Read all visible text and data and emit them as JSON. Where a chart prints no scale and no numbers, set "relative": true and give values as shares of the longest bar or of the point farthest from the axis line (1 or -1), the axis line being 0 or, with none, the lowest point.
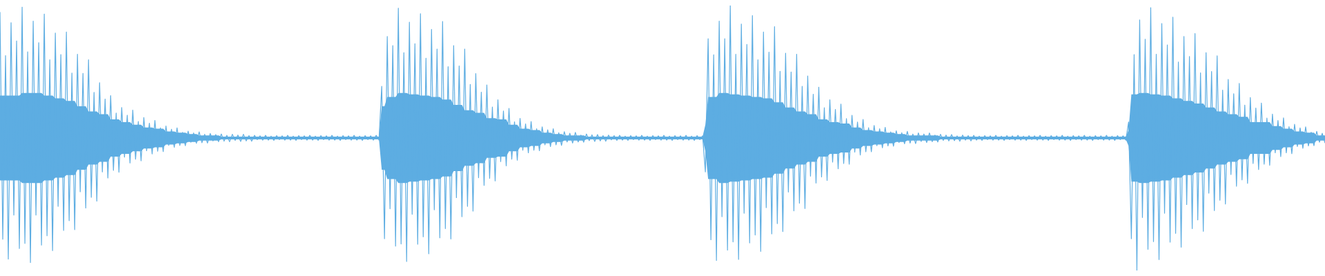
{
  "chart_data": {
    "type": "line",
    "relative": true,
    "categories": [
      null,
      null,
      null,
      null,
      null,
      null,
      null,
      null,
      null,
      null,
      null,
      null,
      null,
      null,
      null,
      null,
      null,
      null,
      null,
      null,
      null,
      null,
      null,
      null,
      null,
      null,
      null,
      null,
      null,
      null,
      null,
      null,
      null,
      null,
      null,
      null,
      null,
      null,
      null,
      null,
      null,
      null,
      null,
      null,
      null,
      null,
      null,
      null,
      null,
      null,
      null,
      null,
      null,
      null,
      null,
      null,
      null,
      null,
      null,
      null,
      null,
      null,
      null,
      null,
      null,
      null,
      null,
      null,
      null,
      null,
      null,
      null,
      null,
      null,
      null,
      null,
      null,
      null,
      null,
      null,
      null,
      null,
      null,
      null,
      null,
      null,
      null,
      null,
      null,
      null,
      null,
      null,
      null,
      null,
      null,
      null,
      null,
      null,
      null,
      null,
      null,
      null,
      null,
      null,
      null,
      null,
      null,
      null,
      null,
      null,
      null,
      null,
      null,
      null,
      null,
      null,
      null,
      null,
      null,
      null,
      null,
      null,
      null,
      null,
      null,
      null,
      null,
      null,
      null,
      null,
      null,
      null,
      null,
      null,
      null,
      null,
      null,
      null,
      null,
      null,
      null,
      null,
      null,
      null,
      null,
      null,
      null,
      null,
      null,
      null,
      null,
      null,
      null,
      null,
      null,
      null,
      null,
      null,
      null,
      null,
      null,
      null,
      null,
      null,
      null,
      null,
      null,
      null,
      null,
      null,
      null,
      null,
      null,
      null,
      null,
      null,
      null,
      null,
      null,
      null,
      null,
      null,
      null,
      null,
      null,
      null,
      null,
      null,
      null,
      null,
      null,
      null,
      null,
      null,
      null,
      null,
      null,
      null,
      null,
      null,
      null,
      null,
      null,
      null,
      null,
      null,
      null,
      null,
      null,
      null,
      null,
      null,
      null,
      null,
      null,
      null,
      null,
      null,
      null,
      null,
      null,
      null,
      null,
      null,
      null,
      null,
      null,
      null,
      null,
      null,
      null,
      null,
      null,
      null,
      null,
      null,
      null,
      null,
      null,
      null,
      null,
      null,
      null,
      null,
      null,
      null,
      null,
      null,
      null,
      null,
      null,
      null,
      null,
      null,
      null,
      null,
      null,
      null,
      null,
      null,
      null,
      null,
      null,
      null,
      null,
      null,
      null,
      null,
      null,
      null,
      null,
      null,
      null,
      null,
      null,
      null,
      null,
      null,
      null,
      null,
      null,
      null,
      null,
      null,
      null,
      null,
      null,
      null,
      null,
      null,
      null,
      null,
      null,
      null,
      null,
      null,
      null,
      null,
      null,
      null,
      null,
      null,
      null,
      null,
      null,
      null,
      null,
      null,
      null,
      null,
      null,
      null,
      null,
      null,
      null,
      null,
      null,
      null,
      null,
      null,
      null,
      null,
      null,
      null,
      null,
      null,
      null,
      null,
      null,
      null,
      null,
      null,
      null,
      null,
      null,
      null,
      null,
      null,
      null,
      null,
      null,
      null,
      null,
      null,
      null,
      null,
      null,
      null,
      null,
      null,
      null,
      null,
      null,
      null,
      null,
      null,
      null,
      null,
      null,
      null,
      null,
      null,
      null,
      null,
      null,
      null,
      null,
      null,
      null,
      null,
      null,
      null,
      null,
      null,
      null,
      null,
      null,
      null,
      null,
      null,
      null,
      null,
      null,
      null,
      null,
      null,
      null,
      null,
      null,
      null,
      null,
      null,
      null,
      null,
      null,
      null,
      null,
      null,
      null,
      null,
      null,
      null,
      null,
      null,
      null,
      null,
      null,
      null,
      null,
      null,
      null,
      null,
      null,
      null,
      null,
      null,
      null,
      null,
      null,
      null,
      null,
      null,
      null,
      null,
      null,
      null,
      null,
      null,
      null,
      null,
      null,
      null,
      null,
      null,
      null,
      null,
      null,
      null,
      null,
      null,
      null,
      null,
      null,
      null,
      null,
      null,
      null,
      null,
      null,
      null,
      null,
      null,
      null,
      null,
      null,
      null,
      null,
      null,
      null,
      null,
      null,
      null,
      null,
      null,
      null,
      null,
      null,
      null,
      null,
      null,
      null,
      null,
      null,
      null,
      null,
      null,
      null,
      null,
      null,
      null
    ],
    "series": [
      {
        "color": "#5dade2",
        "values": [
          0.975,
          0.118,
          0.811,
          0.043,
          0.935,
          0.209,
          0.866,
          0.083,
          0.994,
          0.102,
          0.825,
          0.03,
          0.941,
          0.209,
          0.86,
          0.096,
          0.968,
          0.131,
          0.795,
          0.075,
          0.896,
          0.242,
          0.815,
          0.151,
          0.9,
          0.188,
          0.745,
          0.154,
          0.816,
          0.297,
          0.744,
          0.236,
          0.795,
          0.276,
          0.672,
          0.262,
          0.709,
          0.372,
          0.647,
          0.349,
          0.66,
          0.378,
          0.594,
          0.371,
          0.615,
          0.428,
          0.586,
          0.406,
          0.605,
          0.42,
          0.562,
          0.414,
          0.577,
          0.452,
          0.556,
          0.44,
          0.566,
          0.45,
          0.538,
          0.449,
          0.545,
          0.472,
          0.533,
          0.465,
          0.538,
          0.472,
          0.521,
          0.471,
          0.526,
          0.484,
          0.519,
          0.48,
          0.523,
          0.482,
          0.514,
          0.481,
          0.517,
          0.489,
          0.513,
          0.486,
          0.515,
          0.488,
          0.51,
          0.486,
          0.514,
          0.491,
          0.511,
          0.487,
          0.514,
          0.489,
          0.509,
          0.488,
          0.51,
          0.494,
          0.508,
          0.492,
          0.51,
          0.492,
          0.507,
          0.491,
          0.509,
          0.494,
          0.508,
          0.492,
          0.51,
          0.492,
          0.507,
          0.491,
          0.509,
          0.494,
          0.508,
          0.492,
          0.51,
          0.492,
          0.507,
          0.491,
          0.509,
          0.494,
          0.508,
          0.492,
          0.51,
          0.492,
          0.507,
          0.491,
          0.509,
          0.494,
          0.508,
          0.492,
          0.51,
          0.492,
          0.507,
          0.491,
          0.509,
          0.494,
          0.508,
          0.492,
          0.51,
          0.492,
          0.695,
          0.12,
          0.883,
          0.233,
          0.849,
          0.092,
          0.99,
          0.1,
          0.822,
          0.034,
          0.937,
          0.212,
          0.856,
          0.099,
          0.969,
          0.127,
          0.801,
          0.063,
          0.91,
          0.229,
          0.836,
          0.123,
          0.94,
          0.158,
          0.769,
          0.119,
          0.849,
          0.275,
          0.772,
          0.203,
          0.836,
          0.242,
          0.702,
          0.224,
          0.743,
          0.35,
          0.673,
          0.321,
          0.7,
          0.348,
          0.617,
          0.338,
          0.644,
          0.411,
          0.602,
          0.395,
          0.612,
          0.42,
          0.561,
          0.416,
          0.574,
          0.454,
          0.553,
          0.444,
          0.562,
          0.454,
          0.535,
          0.452,
          0.542,
          0.474,
          0.531,
          0.468,
          0.535,
          0.474,
          0.52,
          0.472,
          0.524,
          0.485,
          0.518,
          0.481,
          0.521,
          0.485,
          0.511,
          0.484,
          0.515,
          0.49,
          0.512,
          0.487,
          0.513,
          0.489,
          0.509,
          0.488,
          0.511,
          0.493,
          0.509,
          0.491,
          0.51,
          0.492,
          0.507,
          0.491,
          0.509,
          0.494,
          0.508,
          0.492,
          0.51,
          0.492,
          0.507,
          0.491,
          0.509,
          0.494,
          0.508,
          0.492,
          0.51,
          0.492,
          0.507,
          0.491,
          0.509,
          0.494,
          0.508,
          0.492,
          0.51,
          0.492,
          0.507,
          0.491,
          0.509,
          0.494,
          0.508,
          0.372,
          0.875,
          0.116,
          0.814,
          0.038,
          0.941,
          0.203,
          0.875,
          0.077,
          1.0,
          0.108,
          0.816,
          0.042,
          0.93,
          0.216,
          0.853,
          0.104,
          0.962,
          0.134,
          0.795,
          0.072,
          0.9,
          0.237,
          0.824,
          0.138,
          0.92,
          0.177,
          0.752,
          0.147,
          0.82,
          0.296,
          0.749,
          0.225,
          0.816,
          0.254,
          0.695,
          0.234,
          0.734,
          0.356,
          0.665,
          0.33,
          0.692,
          0.353,
          0.614,
          0.34,
          0.644,
          0.409,
          0.608,
          0.384,
          0.628,
          0.404,
          0.573,
          0.401,
          0.586,
          0.447,
          0.56,
          0.436,
          0.57,
          0.448,
          0.539,
          0.448,
          0.547,
          0.471,
          0.535,
          0.463,
          0.54,
          0.47,
          0.523,
          0.469,
          0.527,
          0.483,
          0.52,
          0.478,
          0.525,
          0.481,
          0.515,
          0.479,
          0.519,
          0.487,
          0.515,
          0.483,
          0.519,
          0.486,
          0.511,
          0.485,
          0.514,
          0.491,
          0.511,
          0.489,
          0.513,
          0.49,
          0.508,
          0.488,
          0.511,
          0.492,
          0.509,
          0.489,
          0.51,
          0.492,
          0.507,
          0.491,
          0.509,
          0.494,
          0.508,
          0.492,
          0.51,
          0.492,
          0.507,
          0.491,
          0.509,
          0.494,
          0.508,
          0.492,
          0.51,
          0.492,
          0.507,
          0.491,
          0.509,
          0.494,
          0.508,
          0.492,
          0.51,
          0.492,
          0.507,
          0.491,
          0.509,
          0.494,
          0.508,
          0.492,
          0.51,
          0.492,
          0.507,
          0.491,
          0.509,
          0.494,
          0.508,
          0.492,
          0.51,
          0.492,
          0.507,
          0.491,
          0.509,
          0.494,
          0.508,
          0.492,
          0.51,
          0.492,
          0.507,
          0.491,
          0.509,
          0.494,
          0.508,
          0.492,
          0.56,
          0.12,
          0.815,
          0.0,
          0.946,
          0.2,
          0.873,
          0.08,
          0.992,
          0.109,
          0.816,
          0.041,
          0.932,
          0.216,
          0.851,
          0.107,
          0.956,
          0.14,
          0.787,
          0.088,
          0.883,
          0.249,
          0.808,
          0.158,
          0.894,
          0.191,
          0.746,
          0.148,
          0.822,
          0.292,
          0.751,
          0.226,
          0.81,
          0.265,
          0.681,
          0.251,
          0.721,
          0.362,
          0.667,
          0.318,
          0.706,
          0.342,
          0.624,
          0.329,
          0.653,
          0.404,
          0.613,
          0.381,
          0.632,
          0.401,
          0.575,
          0.397,
          0.59,
          0.444,
          0.566,
          0.43,
          0.576,
          0.444,
          0.543,
          0.441,
          0.552,
          0.468,
          0.538,
          0.461,
          0.542,
          0.47,
          0.522,
          0.471,
          0.525,
          0.484,
          0.518,
          0.481
        ],
        "upper": [
          0.66,
          0.66,
          0.66,
          0.66,
          0.66,
          0.66,
          0.66,
          0.66,
          0.67,
          0.67,
          0.67,
          0.67,
          0.67,
          0.67,
          0.67,
          0.67,
          0.66,
          0.66,
          0.66,
          0.66,
          0.65,
          0.65,
          0.65,
          0.65,
          0.64,
          0.64,
          0.64,
          0.64,
          0.62,
          0.62,
          0.62,
          0.62,
          0.6,
          0.6,
          0.6,
          0.6,
          0.59,
          0.59,
          0.59,
          0.59,
          0.57,
          0.57,
          0.57,
          0.57,
          0.56,
          0.56,
          0.56,
          0.56,
          0.55,
          0.55,
          0.55,
          0.55,
          0.54,
          0.54,
          0.54,
          0.54,
          0.535,
          0.535,
          0.535,
          0.535,
          0.525,
          0.525,
          0.525,
          0.525,
          0.52,
          0.52,
          0.52,
          0.52,
          0.515,
          0.515,
          0.515,
          0.515,
          0.51,
          0.51,
          0.51,
          0.51,
          0.51,
          0.51,
          0.51,
          0.51,
          0.505,
          0.505,
          0.505,
          0.505,
          0.505,
          0.505,
          0.505,
          0.505,
          0.505,
          0.505,
          0.505,
          0.505,
          0.505,
          0.505,
          0.505,
          0.505,
          0.505,
          0.505,
          0.505,
          0.505,
          0.505,
          0.505,
          0.505,
          0.505,
          0.505,
          0.505,
          0.505,
          0.505,
          0.505,
          0.505,
          0.505,
          0.505,
          0.505,
          0.505,
          0.505,
          0.505,
          0.505,
          0.505,
          0.505,
          0.505,
          0.505,
          0.505,
          0.505,
          0.505,
          0.505,
          0.505,
          0.505,
          0.505,
          0.505,
          0.505,
          0.505,
          0.505,
          0.505,
          0.505,
          0.505,
          0.505,
          0.505,
          0.505,
          0.62,
          0.62,
          0.655,
          0.655,
          0.655,
          0.655,
          0.67,
          0.67,
          0.67,
          0.67,
          0.665,
          0.665,
          0.665,
          0.665,
          0.66,
          0.66,
          0.66,
          0.66,
          0.655,
          0.655,
          0.655,
          0.655,
          0.645,
          0.645,
          0.645,
          0.645,
          0.625,
          0.625,
          0.625,
          0.625,
          0.605,
          0.605,
          0.605,
          0.605,
          0.595,
          0.595,
          0.595,
          0.595,
          0.575,
          0.575,
          0.575,
          0.575,
          0.57,
          0.57,
          0.57,
          0.57,
          0.55,
          0.55,
          0.55,
          0.55,
          0.535,
          0.535,
          0.535,
          0.535,
          0.53,
          0.53,
          0.53,
          0.53,
          0.52,
          0.52,
          0.52,
          0.52,
          0.515,
          0.515,
          0.515,
          0.515,
          0.51,
          0.51,
          0.51,
          0.51,
          0.51,
          0.51,
          0.51,
          0.51,
          0.505,
          0.505,
          0.505,
          0.505,
          0.505,
          0.505,
          0.505,
          0.505,
          0.505,
          0.505,
          0.505,
          0.505,
          0.505,
          0.505,
          0.505,
          0.505,
          0.505,
          0.505,
          0.505,
          0.505,
          0.505,
          0.505,
          0.505,
          0.505,
          0.505,
          0.505,
          0.505,
          0.505,
          0.505,
          0.505,
          0.505,
          0.505,
          0.505,
          0.505,
          0.505,
          0.505,
          0.505,
          0.505,
          0.505,
          0.505,
          0.505,
          0.505,
          0.505,
          0.55,
          0.655,
          0.655,
          0.655,
          0.655,
          0.67,
          0.67,
          0.67,
          0.67,
          0.665,
          0.665,
          0.665,
          0.665,
          0.66,
          0.66,
          0.66,
          0.66,
          0.655,
          0.655,
          0.655,
          0.655,
          0.65,
          0.65,
          0.65,
          0.65,
          0.635,
          0.635,
          0.635,
          0.635,
          0.615,
          0.615,
          0.615,
          0.615,
          0.6,
          0.6,
          0.6,
          0.6,
          0.59,
          0.59,
          0.59,
          0.59,
          0.57,
          0.57,
          0.57,
          0.57,
          0.56,
          0.56,
          0.56,
          0.56,
          0.555,
          0.555,
          0.555,
          0.555,
          0.54,
          0.54,
          0.54,
          0.54,
          0.53,
          0.53,
          0.53,
          0.53,
          0.525,
          0.525,
          0.525,
          0.525,
          0.52,
          0.52,
          0.52,
          0.52,
          0.515,
          0.515,
          0.515,
          0.515,
          0.51,
          0.51,
          0.51,
          0.51,
          0.51,
          0.51,
          0.51,
          0.51,
          0.51,
          0.51,
          0.51,
          0.51,
          0.505,
          0.505,
          0.505,
          0.505,
          0.505,
          0.505,
          0.505,
          0.505,
          0.505,
          0.505,
          0.505,
          0.505,
          0.505,
          0.505,
          0.505,
          0.505,
          0.505,
          0.505,
          0.505,
          0.505,
          0.505,
          0.505,
          0.505,
          0.505,
          0.505,
          0.505,
          0.505,
          0.505,
          0.505,
          0.505,
          0.505,
          0.505,
          0.505,
          0.505,
          0.505,
          0.505,
          0.505,
          0.505,
          0.505,
          0.505,
          0.505,
          0.505,
          0.505,
          0.505,
          0.505,
          0.505,
          0.505,
          0.505,
          0.505,
          0.505,
          0.505,
          0.505,
          0.505,
          0.505,
          0.505,
          0.505,
          0.505,
          0.505,
          0.505,
          0.505,
          0.505,
          0.505,
          0.505,
          0.505,
          0.505,
          0.505,
          0.505,
          0.505,
          0.53,
          0.665,
          0.665,
          0.665,
          0.67,
          0.67,
          0.67,
          0.67,
          0.665,
          0.665,
          0.665,
          0.665,
          0.66,
          0.66,
          0.66,
          0.66,
          0.65,
          0.65,
          0.65,
          0.65,
          0.64,
          0.64,
          0.64,
          0.64,
          0.63,
          0.63,
          0.63,
          0.63,
          0.615,
          0.615,
          0.615,
          0.615,
          0.6,
          0.6,
          0.6,
          0.6,
          0.59,
          0.59,
          0.59,
          0.59,
          0.58,
          0.58,
          0.58,
          0.58,
          0.56,
          0.56,
          0.56,
          0.56,
          0.56,
          0.56,
          0.56,
          0.56,
          0.545,
          0.545,
          0.545,
          0.545,
          0.535,
          0.535,
          0.535,
          0.535,
          0.525,
          0.525,
          0.525,
          0.525,
          0.52,
          0.52,
          0.52,
          0.52,
          0.51,
          0.51,
          0.51,
          0.51
        ],
        "lower": [
          0.34,
          0.34,
          0.34,
          0.34,
          0.34,
          0.34,
          0.34,
          0.34,
          0.33,
          0.33,
          0.33,
          0.33,
          0.33,
          0.33,
          0.33,
          0.33,
          0.34,
          0.34,
          0.34,
          0.34,
          0.35,
          0.35,
          0.35,
          0.35,
          0.36,
          0.36,
          0.36,
          0.36,
          0.38,
          0.38,
          0.38,
          0.38,
          0.4,
          0.4,
          0.4,
          0.4,
          0.41,
          0.41,
          0.41,
          0.41,
          0.43,
          0.43,
          0.43,
          0.43,
          0.44,
          0.44,
          0.44,
          0.44,
          0.45,
          0.45,
          0.45,
          0.45,
          0.46,
          0.46,
          0.46,
          0.46,
          0.465,
          0.465,
          0.465,
          0.465,
          0.475,
          0.475,
          0.475,
          0.475,
          0.48,
          0.48,
          0.48,
          0.48,
          0.485,
          0.485,
          0.485,
          0.485,
          0.49,
          0.49,
          0.49,
          0.49,
          0.49,
          0.49,
          0.49,
          0.49,
          0.495,
          0.495,
          0.495,
          0.495,
          0.495,
          0.495,
          0.495,
          0.495,
          0.495,
          0.495,
          0.495,
          0.495,
          0.495,
          0.495,
          0.495,
          0.495,
          0.495,
          0.495,
          0.495,
          0.495,
          0.495,
          0.495,
          0.495,
          0.495,
          0.495,
          0.495,
          0.495,
          0.495,
          0.495,
          0.495,
          0.495,
          0.495,
          0.495,
          0.495,
          0.495,
          0.495,
          0.495,
          0.495,
          0.495,
          0.495,
          0.495,
          0.495,
          0.495,
          0.495,
          0.495,
          0.495,
          0.495,
          0.495,
          0.495,
          0.495,
          0.495,
          0.495,
          0.495,
          0.495,
          0.495,
          0.495,
          0.495,
          0.495,
          0.38,
          0.38,
          0.345,
          0.345,
          0.345,
          0.345,
          0.33,
          0.33,
          0.33,
          0.33,
          0.335,
          0.335,
          0.335,
          0.335,
          0.34,
          0.34,
          0.34,
          0.34,
          0.345,
          0.345,
          0.345,
          0.345,
          0.355,
          0.355,
          0.355,
          0.355,
          0.375,
          0.375,
          0.375,
          0.375,
          0.395,
          0.395,
          0.395,
          0.395,
          0.405,
          0.405,
          0.405,
          0.405,
          0.425,
          0.425,
          0.425,
          0.425,
          0.43,
          0.43,
          0.43,
          0.43,
          0.45,
          0.45,
          0.45,
          0.45,
          0.465,
          0.465,
          0.465,
          0.465,
          0.47,
          0.47,
          0.47,
          0.47,
          0.48,
          0.48,
          0.48,
          0.48,
          0.485,
          0.485,
          0.485,
          0.485,
          0.49,
          0.49,
          0.49,
          0.49,
          0.49,
          0.49,
          0.49,
          0.49,
          0.495,
          0.495,
          0.495,
          0.495,
          0.495,
          0.495,
          0.495,
          0.495,
          0.495,
          0.495,
          0.495,
          0.495,
          0.495,
          0.495,
          0.495,
          0.495,
          0.495,
          0.495,
          0.495,
          0.495,
          0.495,
          0.495,
          0.495,
          0.495,
          0.495,
          0.495,
          0.495,
          0.495,
          0.495,
          0.495,
          0.495,
          0.495,
          0.495,
          0.495,
          0.495,
          0.495,
          0.495,
          0.495,
          0.495,
          0.495,
          0.495,
          0.495,
          0.495,
          0.45,
          0.345,
          0.345,
          0.345,
          0.345,
          0.33,
          0.33,
          0.33,
          0.33,
          0.335,
          0.335,
          0.335,
          0.335,
          0.34,
          0.34,
          0.34,
          0.34,
          0.345,
          0.345,
          0.345,
          0.345,
          0.35,
          0.35,
          0.35,
          0.35,
          0.365,
          0.365,
          0.365,
          0.365,
          0.385,
          0.385,
          0.385,
          0.385,
          0.4,
          0.4,
          0.4,
          0.4,
          0.41,
          0.41,
          0.41,
          0.41,
          0.43,
          0.43,
          0.43,
          0.43,
          0.44,
          0.44,
          0.44,
          0.44,
          0.445,
          0.445,
          0.445,
          0.445,
          0.46,
          0.46,
          0.46,
          0.46,
          0.47,
          0.47,
          0.47,
          0.47,
          0.475,
          0.475,
          0.475,
          0.475,
          0.48,
          0.48,
          0.48,
          0.48,
          0.485,
          0.485,
          0.485,
          0.485,
          0.49,
          0.49,
          0.49,
          0.49,
          0.49,
          0.49,
          0.49,
          0.49,
          0.49,
          0.49,
          0.49,
          0.49,
          0.495,
          0.495,
          0.495,
          0.495,
          0.495,
          0.495,
          0.495,
          0.495,
          0.495,
          0.495,
          0.495,
          0.495,
          0.495,
          0.495,
          0.495,
          0.495,
          0.495,
          0.495,
          0.495,
          0.495,
          0.495,
          0.495,
          0.495,
          0.495,
          0.495,
          0.495,
          0.495,
          0.495,
          0.495,
          0.495,
          0.495,
          0.495,
          0.495,
          0.495,
          0.495,
          0.495,
          0.495,
          0.495,
          0.495,
          0.495,
          0.495,
          0.495,
          0.495,
          0.495,
          0.495,
          0.495,
          0.495,
          0.495,
          0.495,
          0.495,
          0.495,
          0.495,
          0.495,
          0.495,
          0.495,
          0.495,
          0.495,
          0.495,
          0.495,
          0.495,
          0.495,
          0.495,
          0.495,
          0.495,
          0.495,
          0.495,
          0.495,
          0.495,
          0.47,
          0.335,
          0.335,
          0.335,
          0.33,
          0.33,
          0.33,
          0.33,
          0.335,
          0.335,
          0.335,
          0.335,
          0.34,
          0.34,
          0.34,
          0.34,
          0.35,
          0.35,
          0.35,
          0.35,
          0.36,
          0.36,
          0.36,
          0.36,
          0.37,
          0.37,
          0.37,
          0.37,
          0.385,
          0.385,
          0.385,
          0.385,
          0.4,
          0.4,
          0.4,
          0.4,
          0.41,
          0.41,
          0.41,
          0.41,
          0.42,
          0.42,
          0.42,
          0.42,
          0.44,
          0.44,
          0.44,
          0.44,
          0.44,
          0.44,
          0.44,
          0.44,
          0.455,
          0.455,
          0.455,
          0.455,
          0.465,
          0.465,
          0.465,
          0.465,
          0.475,
          0.475,
          0.475,
          0.475,
          0.48,
          0.48,
          0.48,
          0.48,
          0.49,
          0.49,
          0.49,
          0.49
        ]
      }
    ]
  }
}
